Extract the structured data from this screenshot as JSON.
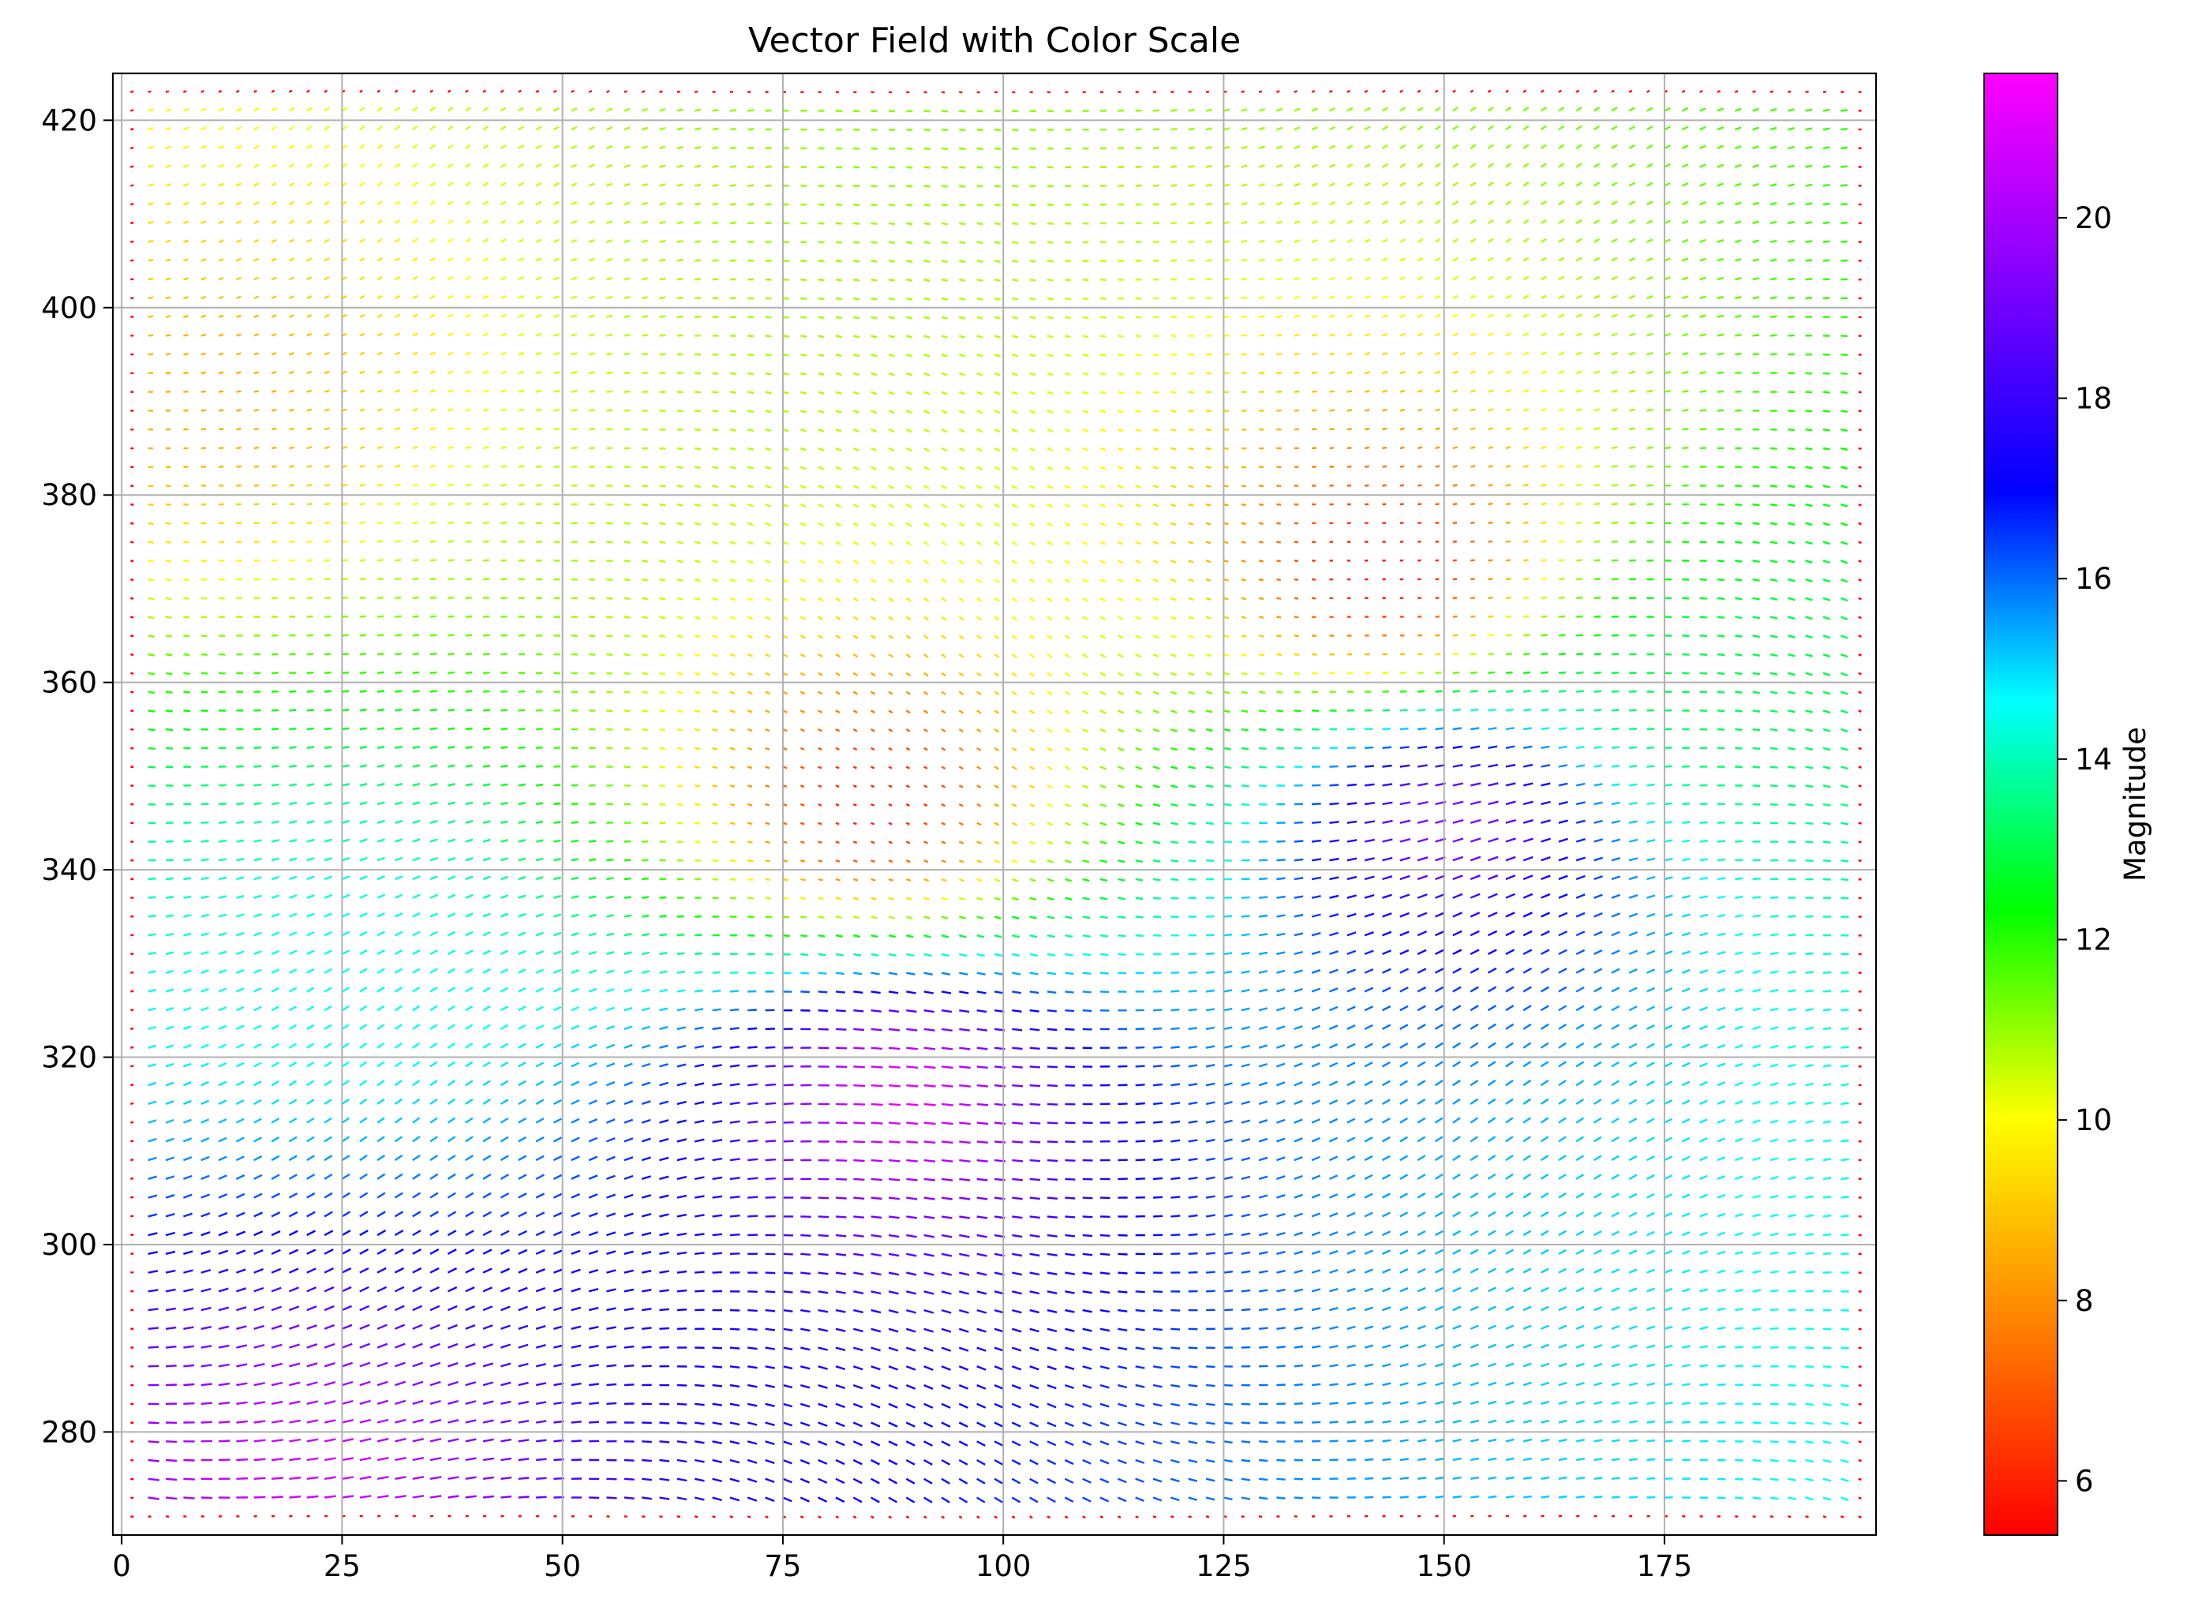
{
  "chart_data": {
    "type": "quiver",
    "title": "Vector Field with Color Scale",
    "xlabel": "",
    "ylabel": "",
    "xlim": [
      -1,
      199
    ],
    "ylim": [
      269,
      425
    ],
    "x_ticks": [
      0,
      25,
      50,
      75,
      100,
      125,
      150,
      175
    ],
    "y_ticks": [
      280,
      300,
      320,
      340,
      360,
      380,
      400,
      420
    ],
    "grid": true,
    "field_domain": {
      "x": [
        1,
        197
      ],
      "y": [
        271,
        424
      ]
    },
    "grid_spacing": 1,
    "colormap": "gist_rainbow",
    "colormap_stops": [
      "#ff0000",
      "#ff8000",
      "#ffff00",
      "#00ff00",
      "#00ffff",
      "#0000ff",
      "#8000ff",
      "#ff00ff"
    ],
    "colorbar": {
      "label": "Magnitude",
      "min": 5.4,
      "max": 21.6,
      "ticks": [
        6,
        8,
        10,
        12,
        14,
        16,
        18,
        20
      ]
    },
    "magnitude_regions": [
      {
        "x": 143,
        "y": 372,
        "magnitude": 5.6,
        "note": "low"
      },
      {
        "x": 85,
        "y": 347,
        "magnitude": 5.8,
        "note": "low"
      },
      {
        "x": 150,
        "y": 345,
        "magnitude": 19.5,
        "note": "high"
      },
      {
        "x": 88,
        "y": 316,
        "magnitude": 21.3,
        "note": "high"
      },
      {
        "x": 20,
        "y": 275,
        "magnitude": 20.8,
        "note": "high"
      },
      {
        "x": 25,
        "y": 330,
        "magnitude": 14.5
      },
      {
        "x": 10,
        "y": 390,
        "magnitude": 8.5
      },
      {
        "x": 180,
        "y": 360,
        "magnitude": 13
      }
    ],
    "boundary_magnitude": 5.4
  }
}
